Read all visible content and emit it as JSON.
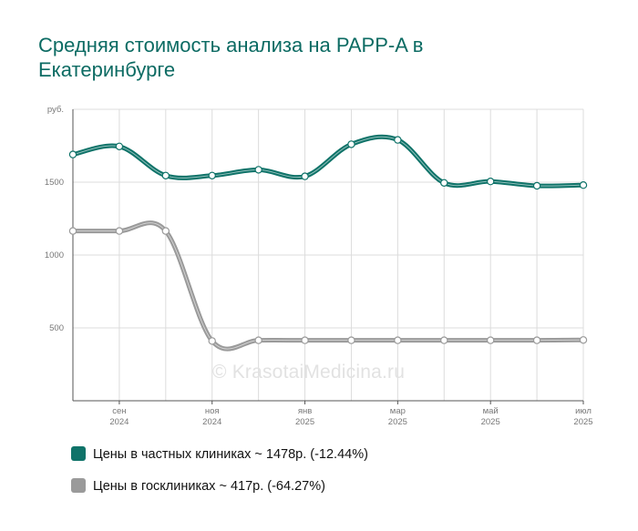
{
  "title": "Средняя стоимость анализа на PAPP-A в Екатеринбурге",
  "watermark": "© KrasotaiMedicina.ru",
  "colors": {
    "private": "#0f7369",
    "public": "#9a9a9a",
    "grid": "#dcdcdc",
    "axis": "#555555",
    "title": "#0c6b63"
  },
  "legend": [
    {
      "label": "Цены в частных клиниках ~ 1478р. (-12.44%)",
      "color": "#0f7369"
    },
    {
      "label": "Цены в госклиниках ~ 417р. (-64.27%)",
      "color": "#9a9a9a"
    }
  ],
  "chart_data": {
    "type": "line",
    "y_unit_label": "руб.",
    "ylim": [
      0,
      2000
    ],
    "y_ticks": [
      "500",
      "1000",
      "1500"
    ],
    "y_tick_values": [
      500,
      1000,
      1500
    ],
    "x_labels": [
      {
        "month": "сен",
        "year": "2024",
        "index": 1
      },
      {
        "month": "ноя",
        "year": "2024",
        "index": 3
      },
      {
        "month": "янв",
        "year": "2025",
        "index": 5
      },
      {
        "month": "мар",
        "year": "2025",
        "index": 7
      },
      {
        "month": "май",
        "year": "2025",
        "index": 9
      },
      {
        "month": "июл",
        "year": "2025",
        "index": 11
      }
    ],
    "grid": true,
    "series": [
      {
        "name": "Цены в частных клиниках",
        "values": [
          1690,
          1745,
          1545,
          1545,
          1585,
          1540,
          1760,
          1790,
          1495,
          1505,
          1475,
          1480
        ]
      },
      {
        "name": "Цены в госклиниках",
        "values": [
          1165,
          1165,
          1165,
          410,
          415,
          415,
          415,
          415,
          415,
          415,
          415,
          417
        ]
      }
    ]
  }
}
